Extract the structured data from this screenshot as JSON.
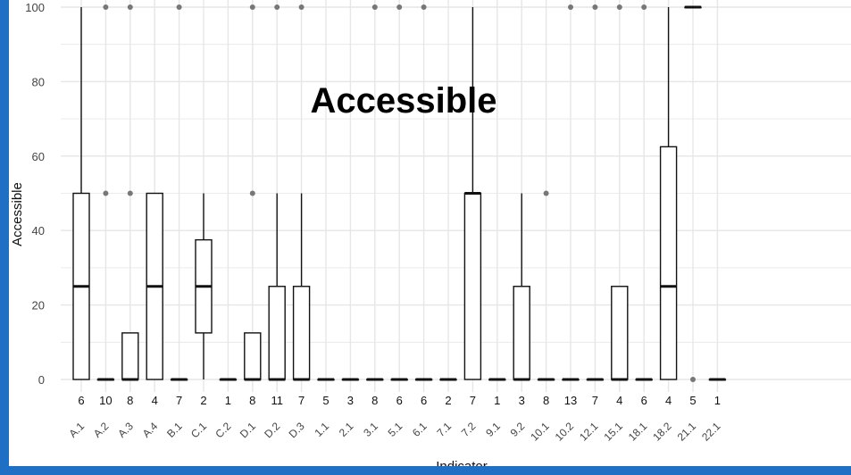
{
  "chart_data": {
    "type": "box",
    "title": "Accessible",
    "xlabel": "Indicator",
    "ylabel": "Accessible",
    "ylim": [
      0,
      100
    ],
    "yticks": [
      0,
      20,
      40,
      60,
      80,
      100
    ],
    "grid": true,
    "categories": [
      "A.1",
      "A.2",
      "A.3",
      "A.4",
      "B.1",
      "C.1",
      "C.2",
      "D.1",
      "D.2",
      "D.3",
      "1.1",
      "2.1",
      "3.1",
      "5.1",
      "6.1",
      "7.1",
      "7.2",
      "9.1",
      "9.2",
      "10.1",
      "10.2",
      "12.1",
      "15.1",
      "18.1",
      "18.2",
      "21.1",
      "22.1"
    ],
    "counts": [
      "6",
      "10",
      "8",
      "4",
      "7",
      "2",
      "1",
      "8",
      "11",
      "7",
      "5",
      "3",
      "8",
      "6",
      "6",
      "2",
      "7",
      "1",
      "3",
      "8",
      "13",
      "7",
      "4",
      "6",
      "4",
      "5",
      "1"
    ],
    "boxes": [
      {
        "min": 0,
        "q1": 0,
        "median": 25,
        "q3": 50,
        "max": 100,
        "outliers": []
      },
      {
        "min": 0,
        "q1": 0,
        "median": 0,
        "q3": 0,
        "max": 0,
        "outliers": [
          50,
          100
        ]
      },
      {
        "min": 0,
        "q1": 0,
        "median": 0,
        "q3": 12.5,
        "max": 12.5,
        "outliers": [
          50,
          100
        ]
      },
      {
        "min": 0,
        "q1": 0,
        "median": 25,
        "q3": 50,
        "max": 50,
        "outliers": []
      },
      {
        "min": 0,
        "q1": 0,
        "median": 0,
        "q3": 0,
        "max": 0,
        "outliers": [
          100
        ]
      },
      {
        "min": 0,
        "q1": 12.5,
        "median": 25,
        "q3": 37.5,
        "max": 50,
        "outliers": []
      },
      {
        "min": 0,
        "q1": 0,
        "median": 0,
        "q3": 0,
        "max": 0,
        "outliers": []
      },
      {
        "min": 0,
        "q1": 0,
        "median": 0,
        "q3": 12.5,
        "max": 12.5,
        "outliers": [
          50,
          100
        ]
      },
      {
        "min": 0,
        "q1": 0,
        "median": 0,
        "q3": 25,
        "max": 50,
        "outliers": [
          100
        ]
      },
      {
        "min": 0,
        "q1": 0,
        "median": 0,
        "q3": 25,
        "max": 50,
        "outliers": [
          100
        ]
      },
      {
        "min": 0,
        "q1": 0,
        "median": 0,
        "q3": 0,
        "max": 0,
        "outliers": []
      },
      {
        "min": 0,
        "q1": 0,
        "median": 0,
        "q3": 0,
        "max": 0,
        "outliers": []
      },
      {
        "min": 0,
        "q1": 0,
        "median": 0,
        "q3": 0,
        "max": 0,
        "outliers": [
          100
        ]
      },
      {
        "min": 0,
        "q1": 0,
        "median": 0,
        "q3": 0,
        "max": 0,
        "outliers": [
          100
        ]
      },
      {
        "min": 0,
        "q1": 0,
        "median": 0,
        "q3": 0,
        "max": 0,
        "outliers": [
          100
        ]
      },
      {
        "min": 0,
        "q1": 0,
        "median": 0,
        "q3": 0,
        "max": 0,
        "outliers": []
      },
      {
        "min": 0,
        "q1": 0,
        "median": 50,
        "q3": 50,
        "max": 100,
        "outliers": []
      },
      {
        "min": 0,
        "q1": 0,
        "median": 0,
        "q3": 0,
        "max": 0,
        "outliers": []
      },
      {
        "min": 0,
        "q1": 0,
        "median": 0,
        "q3": 25,
        "max": 50,
        "outliers": []
      },
      {
        "min": 0,
        "q1": 0,
        "median": 0,
        "q3": 0,
        "max": 0,
        "outliers": [
          50
        ]
      },
      {
        "min": 0,
        "q1": 0,
        "median": 0,
        "q3": 0,
        "max": 0,
        "outliers": [
          100
        ]
      },
      {
        "min": 0,
        "q1": 0,
        "median": 0,
        "q3": 0,
        "max": 0,
        "outliers": [
          100
        ]
      },
      {
        "min": 0,
        "q1": 0,
        "median": 0,
        "q3": 25,
        "max": 25,
        "outliers": [
          100
        ]
      },
      {
        "min": 0,
        "q1": 0,
        "median": 0,
        "q3": 0,
        "max": 0,
        "outliers": [
          100
        ]
      },
      {
        "min": 0,
        "q1": 0,
        "median": 25,
        "q3": 62.5,
        "max": 100,
        "outliers": []
      },
      {
        "min": 100,
        "q1": 100,
        "median": 100,
        "q3": 100,
        "max": 100,
        "outliers": [
          0
        ]
      },
      {
        "min": 0,
        "q1": 0,
        "median": 0,
        "q3": 0,
        "max": 0,
        "outliers": []
      }
    ],
    "colors": {
      "box_fill": "#ffffff",
      "box_stroke": "#111111",
      "outlier": "#777777",
      "grid": "#e6e6e6",
      "frame": "#1f6fc4"
    }
  }
}
